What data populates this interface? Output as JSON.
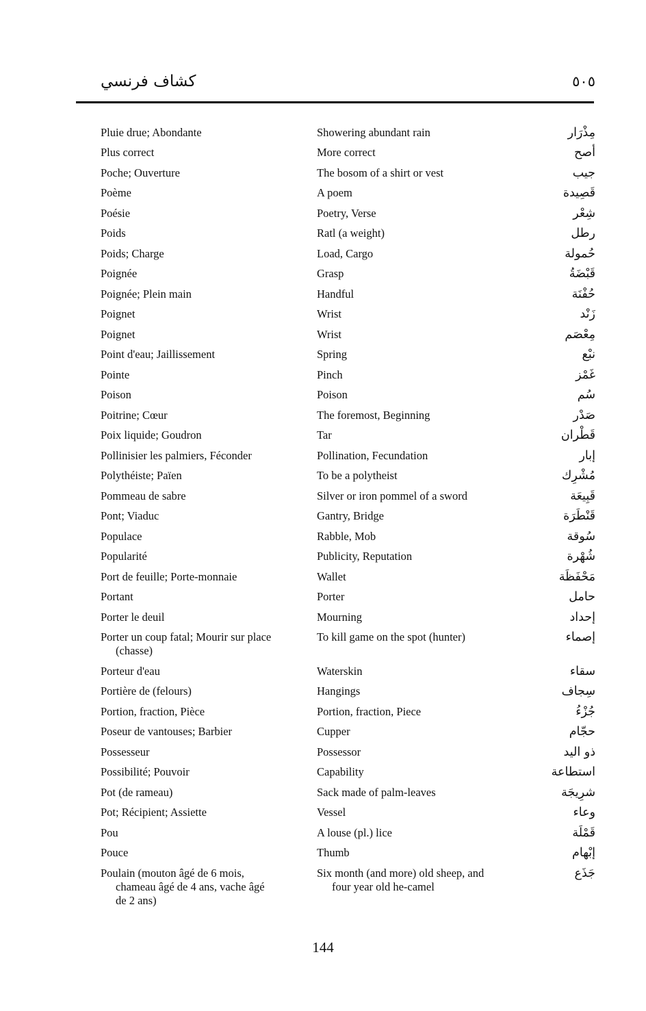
{
  "header": {
    "title_arabic": "كشاف فرنسي",
    "page_number_arabic": "٥٠٥"
  },
  "footer": {
    "page_number": "144"
  },
  "entries": [
    {
      "french": "Pluie drue; Abondante",
      "english": "Showering abundant rain",
      "arabic": "مِذْرَار"
    },
    {
      "french": "Plus correct",
      "english": "More correct",
      "arabic": "أصح"
    },
    {
      "french": "Poche; Ouverture",
      "english": "The bosom of a shirt or vest",
      "arabic": "جيب"
    },
    {
      "french": "Poème",
      "english": "A poem",
      "arabic": "قَصِيدة"
    },
    {
      "french": "Poésie",
      "english": "Poetry, Verse",
      "arabic": "شِعْر"
    },
    {
      "french": "Poids",
      "english": "Ratl (a weight)",
      "arabic": "رطل"
    },
    {
      "french": "Poids; Charge",
      "english": "Load, Cargo",
      "arabic": "حُمولة"
    },
    {
      "french": "Poignée",
      "english": "Grasp",
      "arabic": "قَبْضَةُ"
    },
    {
      "french": "Poignée; Plein main",
      "english": "Handful",
      "arabic": "حُفْنَة"
    },
    {
      "french": "Poignet",
      "english": "Wrist",
      "arabic": "زَنْد"
    },
    {
      "french": "Poignet",
      "english": "Wrist",
      "arabic": "مِعْصَم"
    },
    {
      "french": "Point d'eau; Jaillissement",
      "english": "Spring",
      "arabic": "نبْع"
    },
    {
      "french": "Pointe",
      "english": "Pinch",
      "arabic": "غَمْز"
    },
    {
      "french": "Poison",
      "english": "Poison",
      "arabic": "سُم"
    },
    {
      "french": "Poitrine; Cœur",
      "english": "The foremost, Beginning",
      "arabic": "صَدْر"
    },
    {
      "french": "Poix liquide; Goudron",
      "english": "Tar",
      "arabic": "قَطْران"
    },
    {
      "french": "Pollinisier les palmiers, Féconder",
      "english": "Pollination, Fecundation",
      "arabic": "إبار"
    },
    {
      "french": "Polythéiste; Païen",
      "english": "To be a polytheist",
      "arabic": "مُشْرِك"
    },
    {
      "french": "Pommeau de sabre",
      "english": "Silver or iron pommel of a sword",
      "arabic": "قَبِيعَة"
    },
    {
      "french": "Pont; Viaduc",
      "english": "Gantry, Bridge",
      "arabic": "قَنْطَرَة"
    },
    {
      "french": "Populace",
      "english": "Rabble, Mob",
      "arabic": "سُوقة"
    },
    {
      "french": "Popularité",
      "english": "Publicity, Reputation",
      "arabic": "شُهْرة"
    },
    {
      "french": "Port de feuille; Porte-monnaie",
      "english": "Wallet",
      "arabic": "مَحْفَظَة"
    },
    {
      "french": "Portant",
      "english": "Porter",
      "arabic": "حامل"
    },
    {
      "french": "Porter le deuil",
      "english": "Mourning",
      "arabic": "إحداد"
    },
    {
      "french": "Porter un coup fatal; Mourir sur place\n(chasse)",
      "english": "To kill game on the spot (hunter)",
      "arabic": "إصماء"
    },
    {
      "french": "Porteur d'eau",
      "english": "Waterskin",
      "arabic": "سقاء"
    },
    {
      "french": "Portière de (felours)",
      "english": "Hangings",
      "arabic": "سِجاف"
    },
    {
      "french": "Portion, fraction, Pièce",
      "english": "Portion, fraction, Piece",
      "arabic": "جُزْءُ"
    },
    {
      "french": "Poseur de vantouses; Barbier",
      "english": "Cupper",
      "arabic": "حجّام"
    },
    {
      "french": "Possesseur",
      "english": "Possessor",
      "arabic": "ذو اليد"
    },
    {
      "french": "Possibilité; Pouvoir",
      "english": "Capability",
      "arabic": "استطاعة"
    },
    {
      "french": "Pot (de rameau)",
      "english": "Sack made of palm-leaves",
      "arabic": "شرِيجَة"
    },
    {
      "french": "Pot; Récipient; Assiette",
      "english": "Vessel",
      "arabic": "وعاء"
    },
    {
      "french": "Pou",
      "english": "A louse (pl.) lice",
      "arabic": "قَمْلَة"
    },
    {
      "french": "Pouce",
      "english": "Thumb",
      "arabic": "إبْهام"
    },
    {
      "french": "Poulain (mouton âgé de 6 mois,\nchameau âgé de 4 ans, vache âgé\nde 2 ans)",
      "english": "Six month (and more) old sheep, and\nfour year old he-camel",
      "arabic": "جَذَع"
    }
  ]
}
